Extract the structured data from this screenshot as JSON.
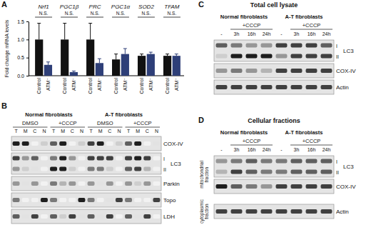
{
  "chart_data": {
    "type": "bar",
    "panel": "A",
    "y_label": "Fold change mRNA levels",
    "categories": [
      "Nrf1",
      "PGC1β",
      "PRC",
      "PGC1α",
      "SOD2",
      "TFAM"
    ],
    "significance": [
      "N.S.",
      "N.S.",
      "N.S.",
      "N.S.",
      "N.S.",
      "N.S."
    ],
    "series": [
      {
        "name": "Control",
        "color": "#111111",
        "values": [
          1.0,
          1.0,
          1.0,
          0.45,
          0.55,
          0.55
        ],
        "errors": [
          0.45,
          0.45,
          0.45,
          0.15,
          0.05,
          0.05
        ]
      },
      {
        "name": "ATM⁻",
        "color": "#2e3f78",
        "values": [
          0.3,
          0.1,
          0.35,
          0.6,
          0.6,
          0.55
        ],
        "errors": [
          0.08,
          0.03,
          0.12,
          0.15,
          0.05,
          0.05
        ]
      }
    ],
    "ylim": [
      0,
      1.5
    ],
    "yticks": [
      {
        "value": 0,
        "label": "0.0"
      },
      0.5,
      {
        "value": 1,
        "label": "1.0"
      },
      1.5
    ],
    "grid": false
  },
  "blots": [
    {
      "panel": "B",
      "groups": [
        {
          "label": "Normal fibroblasts",
          "conditions": [
            {
              "label": "DMSO",
              "lanes": [
                "T",
                "M",
                "C",
                "N"
              ]
            },
            {
              "label": "+CCCP",
              "lanes": [
                "T",
                "M",
                "C",
                "N"
              ]
            }
          ]
        },
        {
          "label": "A-T fibroblasts",
          "conditions": [
            {
              "label": "DMSO",
              "lanes": [
                "T",
                "M",
                "C",
                "N"
              ]
            },
            {
              "label": "+CCCP",
              "lanes": [
                "T",
                "M",
                "C",
                "N"
              ]
            }
          ]
        }
      ],
      "sections": [
        {
          "rows": [
            {
              "label": "COX-IV",
              "bands": [
                [
                  0.9,
                  0.9,
                  0.1,
                  0.3,
                  0.7,
                  0.9,
                  0.1,
                  0.3,
                  0.8,
                  0.9,
                  0.1,
                  0.3,
                  0.7,
                  0.9,
                  0.1,
                  0.2
                ]
              ]
            },
            {
              "label": "LC3",
              "band_labels": [
                "I",
                "II"
              ],
              "bands": [
                [
                  0.8,
                  0.5,
                  0.7,
                  0.1,
                  0.6,
                  0.9,
                  0.5,
                  0.1,
                  0.8,
                  0.8,
                  0.8,
                  0.1,
                  0.8,
                  0.9,
                  0.8,
                  0.1
                ],
                [
                  0.5,
                  0.3,
                  0.2,
                  0.1,
                  0.9,
                  0.9,
                  0.3,
                  0.1,
                  0.6,
                  0.6,
                  0.3,
                  0.1,
                  0.7,
                  0.8,
                  0.4,
                  0.1
                ]
              ]
            },
            {
              "label": "Parkin",
              "bands": [
                [
                  0.5,
                  0.2,
                  0.5,
                  0.1,
                  0.6,
                  0.4,
                  0.5,
                  0.1,
                  0.5,
                  0.2,
                  0.5,
                  0.1,
                  0.5,
                  0.3,
                  0.5,
                  0.1
                ]
              ]
            },
            {
              "label": "Topo",
              "bands": [
                [
                  0.6,
                  0.1,
                  0.1,
                  0.9,
                  0.6,
                  0.1,
                  0.1,
                  0.9,
                  0.6,
                  0.1,
                  0.2,
                  0.8,
                  0.6,
                  0.1,
                  0.1,
                  0.8
                ]
              ]
            },
            {
              "label": "LDH",
              "bands": [
                [
                  0.7,
                  0.2,
                  0.8,
                  0.1,
                  0.7,
                  0.3,
                  0.8,
                  0.2,
                  0.7,
                  0.2,
                  0.8,
                  0.1,
                  0.7,
                  0.2,
                  0.8,
                  0.1
                ]
              ]
            }
          ]
        }
      ]
    },
    {
      "panel": "C",
      "title": "Total cell lysate",
      "groups": [
        {
          "label": "Normal fibroblasts",
          "conditions": [
            {
              "lanes": [
                "-"
              ]
            },
            {
              "label": "+CCCP",
              "lanes": [
                "3h",
                "16h",
                "24h"
              ]
            }
          ]
        },
        {
          "label": "A-T fibroblasts",
          "conditions": [
            {
              "lanes": [
                "-"
              ]
            },
            {
              "label": "+CCCP",
              "lanes": [
                "3h",
                "16h",
                "24h"
              ]
            }
          ]
        }
      ],
      "sections": [
        {
          "rows": [
            {
              "label": "LC3",
              "band_labels": [
                "I",
                "II"
              ],
              "bands": [
                [
                  0.7,
                  0.6,
                  0.5,
                  0.5,
                  0.8,
                  0.8,
                  0.8,
                  0.7
                ],
                [
                  0.3,
                  0.9,
                  0.9,
                  0.9,
                  0.5,
                  0.8,
                  0.8,
                  0.8
                ]
              ]
            },
            {
              "label": "COX-IV",
              "bands": [
                [
                  0.5,
                  0.6,
                  0.5,
                  0.4,
                  0.8,
                  0.8,
                  0.8,
                  0.8
                ]
              ]
            },
            {
              "label": "Actin",
              "bands": [
                [
                  0.8,
                  0.8,
                  0.8,
                  0.8,
                  0.8,
                  0.8,
                  0.8,
                  0.8
                ]
              ]
            }
          ]
        }
      ]
    },
    {
      "panel": "D",
      "title": "Cellular fractions",
      "groups": [
        {
          "label": "Normal fibroblasts",
          "conditions": [
            {
              "lanes": [
                "-"
              ]
            },
            {
              "label": "+CCCP",
              "lanes": [
                "3h",
                "16h",
                "24h"
              ]
            }
          ]
        },
        {
          "label": "A-T fibroblasts",
          "conditions": [
            {
              "lanes": [
                "-"
              ]
            },
            {
              "label": "+CCCP",
              "lanes": [
                "3h",
                "16h",
                "24h"
              ]
            }
          ]
        }
      ],
      "sections": [
        {
          "label": "mitochondrial fraction",
          "rows": [
            {
              "label": "LC3",
              "band_labels": [
                "I",
                "II"
              ],
              "bands": [
                [
                  0.5,
                  0.6,
                  0.7,
                  0.6,
                  0.6,
                  0.7,
                  0.7,
                  0.7
                ],
                [
                  0.4,
                  0.8,
                  0.7,
                  0.6,
                  0.6,
                  0.7,
                  0.7,
                  0.7
                ]
              ]
            },
            {
              "label": "COX-IV",
              "bands": [
                [
                  0.9,
                  0.7,
                  0.6,
                  0.5,
                  0.8,
                  0.8,
                  0.8,
                  0.8
                ]
              ]
            }
          ]
        },
        {
          "label": "cytoplasmic fraction",
          "rows": [
            {
              "label": "Actin",
              "bands": [
                [
                  0.8,
                  0.8,
                  0.8,
                  0.8,
                  0.8,
                  0.8,
                  0.8,
                  0.8
                ]
              ]
            }
          ]
        }
      ]
    }
  ]
}
